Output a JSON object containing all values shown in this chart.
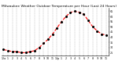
{
  "title": "Milwaukee Weather Outdoor Temperature per Hour (Last 24 Hours)",
  "background_color": "#ffffff",
  "plot_bg_color": "#ffffff",
  "line_color": "#ff0000",
  "marker_color": "#000000",
  "grid_color": "#888888",
  "y_values": [
    28,
    27,
    26,
    26,
    25,
    25,
    26,
    27,
    30,
    34,
    38,
    43,
    49,
    55,
    60,
    64,
    65,
    64,
    62,
    56,
    50,
    46,
    43,
    42
  ],
  "ylim": [
    22,
    68
  ],
  "y_ticks": [
    25,
    30,
    35,
    40,
    45,
    50,
    55,
    60,
    65
  ],
  "x_tick_labels": [
    "12a",
    "1",
    "2",
    "3",
    "4",
    "5",
    "6",
    "7",
    "8",
    "9",
    "10",
    "11",
    "12p",
    "1",
    "2",
    "3",
    "4",
    "5",
    "6",
    "7",
    "8",
    "9",
    "10",
    "11"
  ],
  "title_fontsize": 3.2,
  "tick_fontsize": 2.3,
  "line_width": 0.8,
  "marker_size": 1.2
}
